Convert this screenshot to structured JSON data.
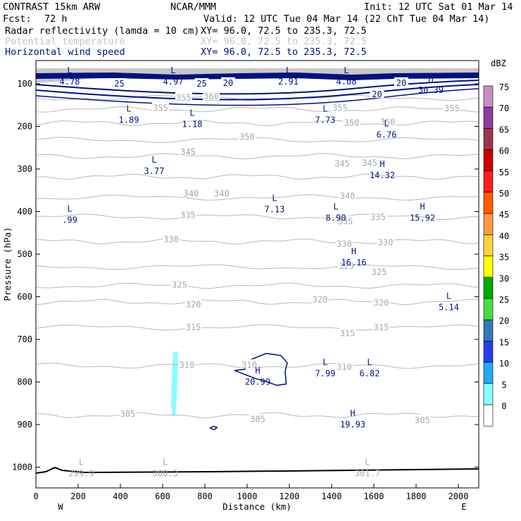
{
  "header": {
    "model": "CONTRAST 15km ARW",
    "center": "NCAR/MMM",
    "init": "Init: 12 UTC Sat 01 Mar 14",
    "fcst_label": "Fcst:",
    "fcst_value": "72 h",
    "valid": "Valid: 12 UTC Tue 04 Mar 14 (22 ChT Tue 04 Mar 14)"
  },
  "fields": [
    {
      "name": "Radar reflectivity (lamda = 10 cm)",
      "xy": "XY=  96.0, 72.5 to 235.3, 72.5",
      "color": "#000000"
    },
    {
      "name": "Potential temperature",
      "xy": "XY=  96.0, 72.5 to 235.3, 72.5",
      "color": "#c4c4c4"
    },
    {
      "name": "Horizontal wind speed",
      "xy": "XY=  96.0, 72.5 to 235.3, 72.5",
      "color": "#00137f"
    }
  ],
  "chart_data": {
    "type": "contour",
    "xlabel": "Distance (km)",
    "ylabel": "Pressure (hPa)",
    "xlim": [
      0,
      2100
    ],
    "ylim": [
      1050,
      70
    ],
    "x_ticks": [
      "0",
      "200",
      "400",
      "600",
      "800",
      "1000",
      "1200",
      "1400",
      "1600",
      "1800",
      "2000"
    ],
    "y_ticks": [
      "100",
      "200",
      "300",
      "400",
      "500",
      "600",
      "700",
      "800",
      "900",
      "1000"
    ],
    "left_end": "W",
    "right_end": "E",
    "colorbar": {
      "unit": "dBZ",
      "levels": [
        "75",
        "70",
        "65",
        "60",
        "55",
        "50",
        "45",
        "40",
        "35",
        "30",
        "25",
        "20",
        "15",
        "10",
        "5",
        "0"
      ],
      "colors": [
        "#c490c4",
        "#8f3c9c",
        "#9b3650",
        "#cc0000",
        "#ff1e1e",
        "#ff5a00",
        "#ff9a46",
        "#ffd23a",
        "#ffff00",
        "#00aa00",
        "#46dc46",
        "#3377bb",
        "#2240e6",
        "#22aaee",
        "#88ffff",
        "#ffffff"
      ]
    },
    "theta_labels": [
      {
        "text": "355",
        "x": 700,
        "p": 133
      },
      {
        "text": "360",
        "x": 830,
        "p": 130
      },
      {
        "text": "355",
        "x": 590,
        "p": 157
      },
      {
        "text": "355",
        "x": 1440,
        "p": 157
      },
      {
        "text": "355",
        "x": 1970,
        "p": 158
      },
      {
        "text": "350",
        "x": 1000,
        "p": 225
      },
      {
        "text": "350",
        "x": 1495,
        "p": 192
      },
      {
        "text": "350",
        "x": 1665,
        "p": 190
      },
      {
        "text": "345",
        "x": 720,
        "p": 260
      },
      {
        "text": "345",
        "x": 1450,
        "p": 288
      },
      {
        "text": "345",
        "x": 1580,
        "p": 286
      },
      {
        "text": "340",
        "x": 735,
        "p": 358
      },
      {
        "text": "340",
        "x": 880,
        "p": 358
      },
      {
        "text": "340",
        "x": 1475,
        "p": 364
      },
      {
        "text": "335",
        "x": 720,
        "p": 408
      },
      {
        "text": "335",
        "x": 1465,
        "p": 423
      },
      {
        "text": "335",
        "x": 1620,
        "p": 413
      },
      {
        "text": "330",
        "x": 640,
        "p": 465
      },
      {
        "text": "330",
        "x": 1460,
        "p": 476
      },
      {
        "text": "330",
        "x": 1655,
        "p": 473
      },
      {
        "text": "325",
        "x": 1470,
        "p": 528
      },
      {
        "text": "325",
        "x": 1625,
        "p": 542
      },
      {
        "text": "325",
        "x": 680,
        "p": 572
      },
      {
        "text": "320",
        "x": 745,
        "p": 618
      },
      {
        "text": "320",
        "x": 1345,
        "p": 607
      },
      {
        "text": "320",
        "x": 1635,
        "p": 614
      },
      {
        "text": "315",
        "x": 745,
        "p": 672
      },
      {
        "text": "315",
        "x": 1475,
        "p": 686
      },
      {
        "text": "315",
        "x": 1635,
        "p": 672
      },
      {
        "text": "310",
        "x": 715,
        "p": 760
      },
      {
        "text": "310",
        "x": 1010,
        "p": 760
      },
      {
        "text": "310",
        "x": 1460,
        "p": 765
      },
      {
        "text": "305",
        "x": 435,
        "p": 875
      },
      {
        "text": "305",
        "x": 1050,
        "p": 888
      },
      {
        "text": "305",
        "x": 1830,
        "p": 890
      }
    ],
    "theta_extrema": [
      {
        "kind": "L",
        "value": "299.9",
        "x": 215,
        "p": 1000
      },
      {
        "kind": "L",
        "value": "300.3",
        "x": 612,
        "p": 1000
      },
      {
        "kind": "L",
        "value": "301.7",
        "x": 1570,
        "p": 1000
      }
    ],
    "wind_labels": [
      {
        "text": "25",
        "x": 395,
        "p": 100
      },
      {
        "text": "25",
        "x": 785,
        "p": 100
      },
      {
        "text": "20",
        "x": 910,
        "p": 98
      },
      {
        "text": "20",
        "x": 1730,
        "p": 98
      },
      {
        "text": "20",
        "x": 1615,
        "p": 125
      }
    ],
    "wind_extrema": [
      {
        "kind": "L",
        "value": "4.78",
        "x": 160,
        "p": 80
      },
      {
        "kind": "L",
        "value": "4.97",
        "x": 650,
        "p": 80
      },
      {
        "kind": "L",
        "value": "2.91",
        "x": 1195,
        "p": 80
      },
      {
        "kind": "L",
        "value": "4.08",
        "x": 1470,
        "p": 80
      },
      {
        "kind": "H",
        "value": "30.39",
        "x": 1870,
        "p": 100
      },
      {
        "kind": "L",
        "value": "1.89",
        "x": 440,
        "p": 170
      },
      {
        "kind": "L",
        "value": "1.18",
        "x": 740,
        "p": 180
      },
      {
        "kind": "L",
        "value": "7.73",
        "x": 1370,
        "p": 170
      },
      {
        "kind": "L",
        "value": "6.76",
        "x": 1660,
        "p": 205
      },
      {
        "kind": "L",
        "value": "3.77",
        "x": 560,
        "p": 290
      },
      {
        "kind": "H",
        "value": "14.32",
        "x": 1640,
        "p": 300
      },
      {
        "kind": "L",
        "value": "7.13",
        "x": 1130,
        "p": 380
      },
      {
        "kind": "L",
        "value": ".99",
        "x": 160,
        "p": 405
      },
      {
        "kind": "L",
        "value": "8.90",
        "x": 1420,
        "p": 400
      },
      {
        "kind": "H",
        "value": "15.92",
        "x": 1830,
        "p": 400
      },
      {
        "kind": "H",
        "value": "16.16",
        "x": 1505,
        "p": 505
      },
      {
        "kind": "L",
        "value": "5.14",
        "x": 1955,
        "p": 610
      },
      {
        "kind": "L",
        "value": "7.99",
        "x": 1370,
        "p": 765
      },
      {
        "kind": "L",
        "value": "6.82",
        "x": 1580,
        "p": 765
      },
      {
        "kind": "H",
        "value": "20.99",
        "x": 1050,
        "p": 785
      },
      {
        "kind": "H",
        "value": "19.93",
        "x": 1500,
        "p": 885
      }
    ],
    "wind_contours": [
      {
        "level": 20,
        "x": [
          1090,
          1160,
          1190,
          1180,
          1185,
          1140,
          1090,
          1040,
          940,
          990,
          990,
          1015,
          1040,
          1090
        ],
        "p": [
          733,
          738,
          755,
          775,
          805,
          808,
          799,
          792,
          773,
          770,
          757,
          748,
          743,
          733
        ]
      },
      {
        "level": 20,
        "x": [
          825,
          840,
          858,
          842,
          825
        ],
        "p": [
          908,
          904,
          907,
          912,
          908
        ]
      }
    ],
    "reflectivity_cells": [
      {
        "dbz": 5,
        "x": [
          650,
          672,
          672,
          668,
          660,
          648,
          640,
          645,
          650
        ],
        "p": [
          730,
          728,
          760,
          830,
          878,
          880,
          850,
          770,
          730
        ]
      }
    ]
  }
}
